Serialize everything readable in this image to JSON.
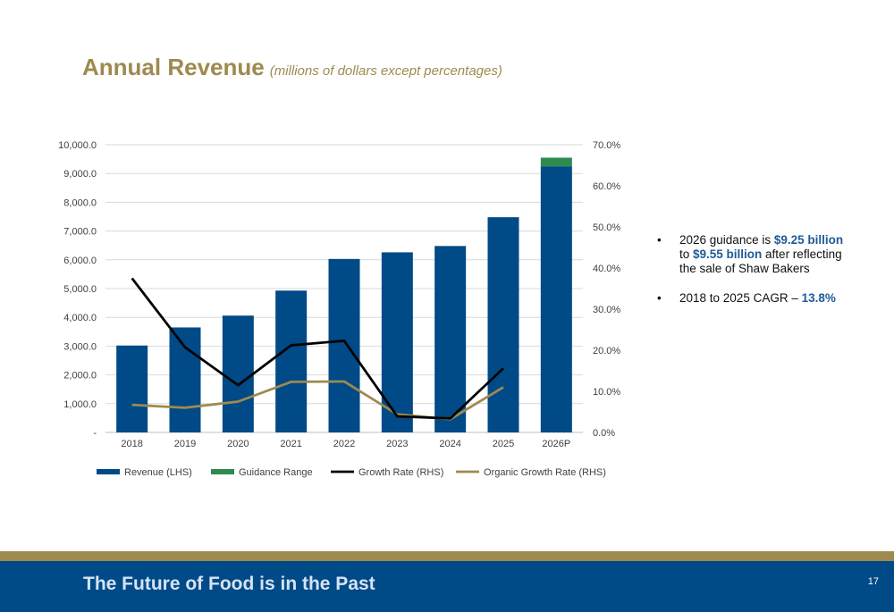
{
  "header": {
    "title": "Annual Revenue",
    "subtitle": "(millions of dollars except percentages)"
  },
  "chart_data": {
    "type": "bar",
    "categories": [
      "2018",
      "2019",
      "2020",
      "2021",
      "2022",
      "2023",
      "2024",
      "2025",
      "2026P"
    ],
    "series": [
      {
        "name": "Revenue (LHS)",
        "type": "bar",
        "axis": "left",
        "color": "#004a87",
        "values": [
          3020,
          3650,
          4060,
          4930,
          6030,
          6260,
          6480,
          7480,
          9250
        ]
      },
      {
        "name": "Guidance Range",
        "type": "bar-stacked",
        "axis": "left",
        "color": "#2e8b4e",
        "values": [
          null,
          null,
          null,
          null,
          null,
          null,
          null,
          null,
          300
        ]
      },
      {
        "name": "Growth Rate (RHS)",
        "type": "line",
        "axis": "right",
        "color": "#000000",
        "values": [
          37.5,
          20.7,
          11.5,
          21.2,
          22.3,
          3.9,
          3.4,
          15.6,
          null
        ]
      },
      {
        "name": "Organic Growth Rate (RHS)",
        "type": "line",
        "axis": "right",
        "color": "#9e8a4f",
        "values": [
          6.7,
          6.0,
          7.5,
          12.3,
          12.4,
          4.4,
          3.2,
          11.0,
          null
        ]
      }
    ],
    "left_axis": {
      "ylim": [
        0,
        10000
      ],
      "ticks": [
        "-",
        "1,000.0",
        "2,000.0",
        "3,000.0",
        "4,000.0",
        "5,000.0",
        "6,000.0",
        "7,000.0",
        "8,000.0",
        "9,000.0",
        "10,000.0"
      ]
    },
    "right_axis": {
      "ylim": [
        0,
        70
      ],
      "ticks": [
        "0.0%",
        "10.0%",
        "20.0%",
        "30.0%",
        "40.0%",
        "50.0%",
        "60.0%",
        "70.0%"
      ]
    },
    "grid": true,
    "legend_position": "bottom"
  },
  "bullets": {
    "b1": {
      "t1": "2026 guidance is ",
      "h1": "$9.25 billion",
      "t2": " to ",
      "h2": "$9.55 billion",
      "t3": " after reflecting the sale of Shaw Bakers"
    },
    "b2": {
      "t1": "2018 to 2025 CAGR – ",
      "h1": "13.8%"
    },
    "marker": "•"
  },
  "footer": {
    "tagline": "The Future of Food is in the Past",
    "page_number": "17"
  },
  "colors": {
    "accent_gold": "#9e8a4f",
    "brand_blue": "#004a87",
    "guidance_green": "#2e8b4e"
  }
}
